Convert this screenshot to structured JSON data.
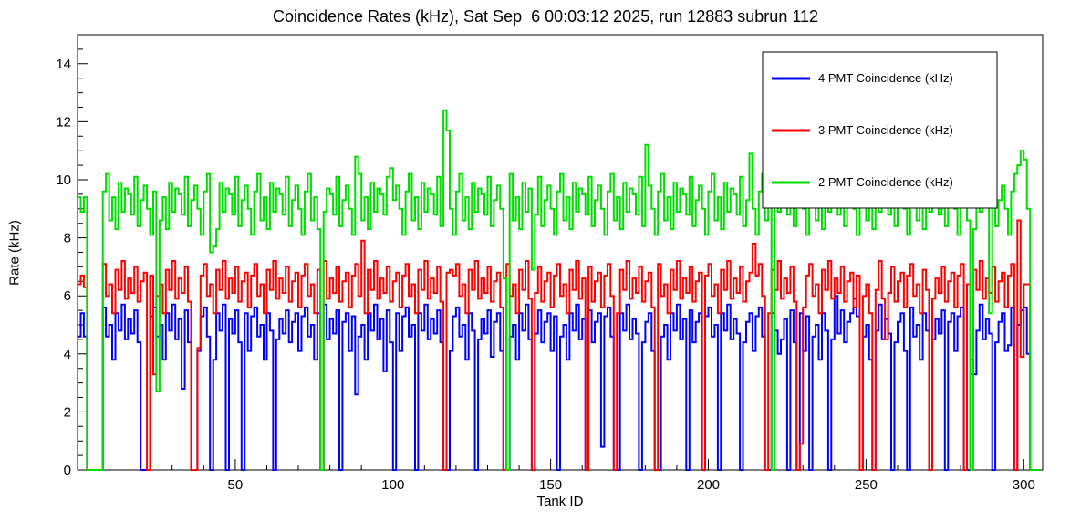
{
  "title": "Coincidence Rates (kHz), Sat Sep  6 00:03:12 2025, run 12883 subrun 112",
  "chart_data": {
    "type": "line",
    "subtype": "step-histogram",
    "title": "Coincidence Rates (kHz), Sat Sep  6 00:03:12 2025, run 12883 subrun 112",
    "xlabel": "Tank ID",
    "ylabel": "Rate (kHz)",
    "xlim": [
      0,
      306
    ],
    "ylim": [
      0,
      15
    ],
    "xticks": [
      50,
      100,
      150,
      200,
      250,
      300
    ],
    "yticks": [
      0,
      2,
      4,
      6,
      8,
      10,
      12,
      14
    ],
    "x_minor_step": 10,
    "y_minor_step": 0.5,
    "x_bin_width": 1,
    "x_start": 0,
    "grid": false,
    "legend_position": "top-right",
    "series": [
      {
        "name": "4 PMT Coincidence (kHz)",
        "color": "#0000ff",
        "values": [
          4.6,
          5.4,
          4.6,
          0,
          0,
          0,
          0,
          0,
          5.6,
          4.6,
          5.0,
          3.8,
          5.4,
          4.8,
          5.7,
          4.5,
          5.2,
          4.7,
          5.5,
          4.4,
          0,
          0,
          0,
          5.3,
          5.6,
          4.6,
          5.0,
          3.8,
          5.4,
          4.8,
          5.7,
          4.5,
          5.2,
          2.8,
          5.5,
          4.4,
          0,
          0,
          4.1,
          5.3,
          5.6,
          4.6,
          0,
          3.8,
          5.4,
          4.8,
          5.7,
          0,
          5.2,
          4.7,
          5.5,
          4.4,
          0,
          5.4,
          4.1,
          5.3,
          5.6,
          4.6,
          5.0,
          3.8,
          5.4,
          4.8,
          0,
          4.5,
          5.2,
          4.7,
          5.5,
          4.4,
          5.1,
          5.4,
          4.1,
          5.3,
          5.6,
          4.6,
          5.0,
          3.8,
          5.4,
          0,
          5.7,
          4.5,
          5.2,
          4.7,
          5.5,
          0,
          5.1,
          5.4,
          4.1,
          5.3,
          2.6,
          4.6,
          5.0,
          3.8,
          5.4,
          4.8,
          5.7,
          4.5,
          5.2,
          3.4,
          5.5,
          4.4,
          0,
          5.4,
          4.1,
          5.3,
          5.6,
          4.6,
          5.0,
          0,
          5.4,
          4.8,
          5.7,
          4.5,
          5.2,
          4.7,
          5.5,
          4.4,
          0,
          0,
          4.1,
          5.3,
          5.6,
          4.6,
          5.0,
          3.8,
          5.4,
          4.8,
          0,
          4.5,
          5.2,
          4.7,
          5.5,
          3.9,
          5.1,
          5.4,
          4.1,
          0,
          0,
          4.6,
          5.0,
          3.8,
          5.4,
          4.8,
          5.7,
          4.5,
          0,
          4.7,
          5.5,
          4.4,
          5.1,
          5.4,
          4.1,
          5.3,
          0,
          4.6,
          5.0,
          3.8,
          5.4,
          4.8,
          5.7,
          4.5,
          5.2,
          0,
          5.5,
          4.4,
          5.1,
          5.4,
          0.8,
          5.3,
          5.6,
          4.6,
          0,
          0,
          5.4,
          4.8,
          5.7,
          4.5,
          5.2,
          4.7,
          0,
          4.4,
          5.1,
          5.4,
          4.1,
          0,
          0,
          4.6,
          5.0,
          3.8,
          5.4,
          4.8,
          5.7,
          4.5,
          5.2,
          0,
          5.5,
          4.4,
          5.1,
          5.4,
          0,
          5.3,
          5.6,
          4.6,
          5.0,
          0,
          5.4,
          4.8,
          5.7,
          4.5,
          5.2,
          4.7,
          0,
          4.4,
          5.1,
          5.4,
          4.1,
          5.3,
          5.6,
          4.6,
          0,
          0,
          5.4,
          4.8,
          4.0,
          4.5,
          5.2,
          0,
          5.5,
          4.4,
          0,
          5.4,
          4.1,
          5.3,
          0,
          4.6,
          5.0,
          3.8,
          5.4,
          4.8,
          0,
          4.5,
          6.0,
          4.7,
          5.5,
          4.4,
          5.1,
          5.4,
          5.9,
          5.3,
          0,
          4.6,
          5.0,
          3.8,
          0,
          4.8,
          5.7,
          4.5,
          5.2,
          4.7,
          0,
          4.4,
          5.1,
          5.4,
          4.1,
          0,
          5.6,
          4.6,
          5.0,
          3.8,
          5.4,
          4.8,
          0,
          4.5,
          5.2,
          4.7,
          5.5,
          0,
          5.1,
          5.4,
          4.1,
          5.3,
          5.6,
          0,
          0,
          3.8,
          3.3,
          4.8,
          5.7,
          4.5,
          5.2,
          4.7,
          0,
          4.4,
          5.1,
          5.4,
          4.1,
          4.3,
          5.6,
          0,
          5.0,
          5.5,
          5.6,
          4.0,
          0,
          0,
          0
        ]
      },
      {
        "name": "3 PMT Coincidence (kHz)",
        "color": "#ff0000",
        "values": [
          6.4,
          6.7,
          6.3,
          0,
          0,
          0,
          0,
          0,
          7.1,
          6.0,
          6.4,
          5.4,
          6.9,
          6.2,
          7.2,
          5.9,
          6.6,
          6.1,
          7.0,
          5.8,
          6.5,
          6.8,
          0,
          6.7,
          3.3,
          6.0,
          6.4,
          5.4,
          6.9,
          6.2,
          7.2,
          5.9,
          6.6,
          6.1,
          7.0,
          5.8,
          0,
          0,
          4.2,
          6.7,
          7.1,
          6.0,
          6.4,
          5.4,
          6.9,
          6.2,
          7.2,
          5.9,
          6.6,
          6.1,
          7.0,
          5.8,
          6.5,
          6.8,
          5.6,
          6.7,
          7.1,
          6.0,
          6.4,
          5.4,
          6.9,
          6.2,
          7.2,
          5.9,
          6.6,
          6.1,
          7.0,
          5.8,
          6.5,
          6.8,
          5.6,
          6.7,
          7.1,
          6.0,
          6.4,
          5.4,
          6.9,
          0,
          7.2,
          5.9,
          6.6,
          6.1,
          7.0,
          5.8,
          6.5,
          6.8,
          5.6,
          6.7,
          7.1,
          6.0,
          7.9,
          5.4,
          6.9,
          6.2,
          7.2,
          5.9,
          6.6,
          6.1,
          7.0,
          5.8,
          6.5,
          6.8,
          5.6,
          6.7,
          7.1,
          6.0,
          6.4,
          5.4,
          6.9,
          6.2,
          7.2,
          5.9,
          6.6,
          6.1,
          7.0,
          5.8,
          0,
          6.8,
          6.9,
          6.7,
          7.1,
          6.0,
          6.4,
          5.4,
          6.9,
          6.2,
          7.2,
          5.9,
          6.6,
          6.1,
          7.0,
          5.8,
          6.5,
          6.8,
          5.6,
          0,
          7.1,
          6.0,
          6.4,
          5.4,
          6.9,
          6.2,
          7.2,
          5.9,
          0,
          6.1,
          7.0,
          5.8,
          6.5,
          6.8,
          5.6,
          6.7,
          7.1,
          6.0,
          6.4,
          5.4,
          6.9,
          6.2,
          7.2,
          5.9,
          6.6,
          0,
          7.0,
          5.8,
          6.5,
          6.8,
          5.6,
          6.7,
          7.1,
          6.0,
          0,
          5.4,
          6.9,
          6.2,
          7.2,
          5.9,
          6.6,
          6.1,
          7.0,
          5.8,
          6.5,
          6.8,
          5.6,
          0,
          7.1,
          6.0,
          6.4,
          5.4,
          6.9,
          6.2,
          7.2,
          5.9,
          6.6,
          6.1,
          7.0,
          5.8,
          6.5,
          6.8,
          0,
          6.7,
          7.1,
          6.0,
          6.4,
          5.4,
          6.9,
          6.2,
          7.2,
          5.9,
          6.6,
          6.1,
          7.0,
          5.8,
          6.5,
          6.8,
          7.8,
          6.7,
          7.1,
          6.0,
          0,
          5.4,
          6.9,
          6.2,
          7.2,
          5.9,
          6.6,
          6.1,
          7.0,
          5.8,
          0,
          0.9,
          5.6,
          6.7,
          7.1,
          6.0,
          6.4,
          5.4,
          6.9,
          6.2,
          7.2,
          5.9,
          6.6,
          6.1,
          7.0,
          5.8,
          6.5,
          6.8,
          5.6,
          6.7,
          0,
          6.0,
          6.4,
          5.4,
          0,
          6.2,
          7.2,
          5.9,
          4.5,
          6.1,
          7.0,
          5.8,
          6.5,
          6.8,
          5.6,
          6.7,
          7.1,
          6.0,
          6.4,
          5.4,
          6.9,
          6.2,
          0,
          5.9,
          6.6,
          6.1,
          7.0,
          5.8,
          6.5,
          6.8,
          5.6,
          6.7,
          7.1,
          0,
          6.4,
          3.3,
          6.9,
          6.2,
          7.2,
          5.9,
          6.6,
          6.1,
          7.0,
          5.8,
          6.5,
          6.8,
          5.6,
          6.7,
          7.1,
          0,
          8.6,
          3.9,
          6.4,
          6.4,
          0,
          0,
          0
        ]
      },
      {
        "name": "2 PMT Coincidence (kHz)",
        "color": "#00dd00",
        "values": [
          9.4,
          8.9,
          9.4,
          0,
          0,
          0,
          0,
          0,
          9.6,
          10.2,
          8.6,
          9.4,
          8.3,
          9.9,
          8.9,
          9.7,
          9.5,
          8.8,
          10.1,
          8.4,
          9.3,
          9.8,
          9.0,
          8.1,
          9.6,
          2.7,
          8.6,
          9.4,
          8.3,
          9.9,
          8.9,
          9.7,
          9.5,
          8.8,
          10.1,
          8.4,
          9.3,
          9.8,
          9.0,
          8.1,
          9.6,
          10.2,
          7.5,
          7.7,
          8.3,
          9.9,
          8.9,
          9.7,
          9.5,
          8.8,
          10.1,
          8.4,
          9.3,
          9.8,
          9.0,
          8.1,
          9.6,
          10.2,
          8.6,
          9.4,
          8.3,
          9.9,
          8.9,
          9.7,
          9.5,
          8.8,
          10.1,
          8.4,
          9.3,
          9.8,
          9.0,
          8.1,
          9.6,
          10.2,
          8.6,
          9.4,
          8.3,
          0,
          8.9,
          9.7,
          9.5,
          8.8,
          10.1,
          8.4,
          9.3,
          9.8,
          9.0,
          8.1,
          10.8,
          10.2,
          8.6,
          9.4,
          8.3,
          9.9,
          8.9,
          9.7,
          9.5,
          8.8,
          10.1,
          10.4,
          9.3,
          9.8,
          9.0,
          8.1,
          9.6,
          10.2,
          8.6,
          9.4,
          8.3,
          9.9,
          8.9,
          9.7,
          9.5,
          8.8,
          10.1,
          8.4,
          12.4,
          11.7,
          9.0,
          8.1,
          9.6,
          10.2,
          8.6,
          9.4,
          8.3,
          9.9,
          8.9,
          9.7,
          9.5,
          8.8,
          10.1,
          8.4,
          9.3,
          9.8,
          9.0,
          6.6,
          0,
          10.2,
          8.6,
          9.4,
          8.3,
          9.9,
          8.9,
          9.7,
          6.9,
          8.8,
          10.1,
          8.4,
          9.3,
          9.8,
          9.0,
          8.1,
          9.6,
          10.2,
          8.6,
          9.4,
          8.3,
          9.9,
          8.9,
          9.7,
          9.5,
          8.8,
          10.1,
          8.4,
          9.3,
          9.8,
          9.0,
          8.1,
          9.6,
          10.2,
          8.6,
          9.4,
          8.3,
          9.9,
          8.9,
          9.7,
          9.5,
          8.8,
          10.1,
          8.4,
          11.2,
          9.8,
          9.0,
          8.1,
          9.6,
          10.2,
          8.6,
          9.4,
          8.3,
          9.9,
          8.9,
          9.7,
          9.5,
          8.8,
          10.1,
          8.4,
          9.3,
          9.8,
          9.0,
          8.1,
          9.6,
          10.2,
          8.6,
          9.4,
          8.3,
          9.9,
          8.9,
          9.7,
          9.5,
          8.8,
          10.1,
          8.4,
          9.3,
          10.9,
          9.0,
          8.1,
          9.6,
          10.2,
          8.6,
          9.4,
          0,
          9.9,
          8.9,
          9.7,
          9.5,
          8.8,
          10.1,
          8.4,
          9.3,
          9.8,
          9.0,
          8.1,
          9.6,
          10.2,
          8.6,
          9.4,
          8.3,
          9.9,
          8.9,
          9.7,
          9.5,
          8.8,
          10.1,
          8.4,
          9.3,
          9.8,
          9.0,
          8.1,
          9.6,
          10.2,
          8.6,
          9.4,
          8.3,
          9.9,
          8.9,
          9.7,
          9.5,
          8.8,
          10.1,
          8.4,
          9.3,
          9.8,
          9.0,
          8.1,
          9.6,
          10.2,
          8.6,
          9.4,
          8.3,
          9.9,
          8.9,
          9.7,
          9.5,
          8.8,
          10.1,
          8.4,
          9.3,
          9.8,
          9.0,
          8.1,
          9.6,
          10.2,
          8.6,
          0,
          8.3,
          9.9,
          8.9,
          9.7,
          9.5,
          5.4,
          10.1,
          8.4,
          9.3,
          9.8,
          9.0,
          8.1,
          9.6,
          10.2,
          10.5,
          11.0,
          10.7,
          9.0,
          0,
          0,
          0
        ]
      }
    ]
  }
}
